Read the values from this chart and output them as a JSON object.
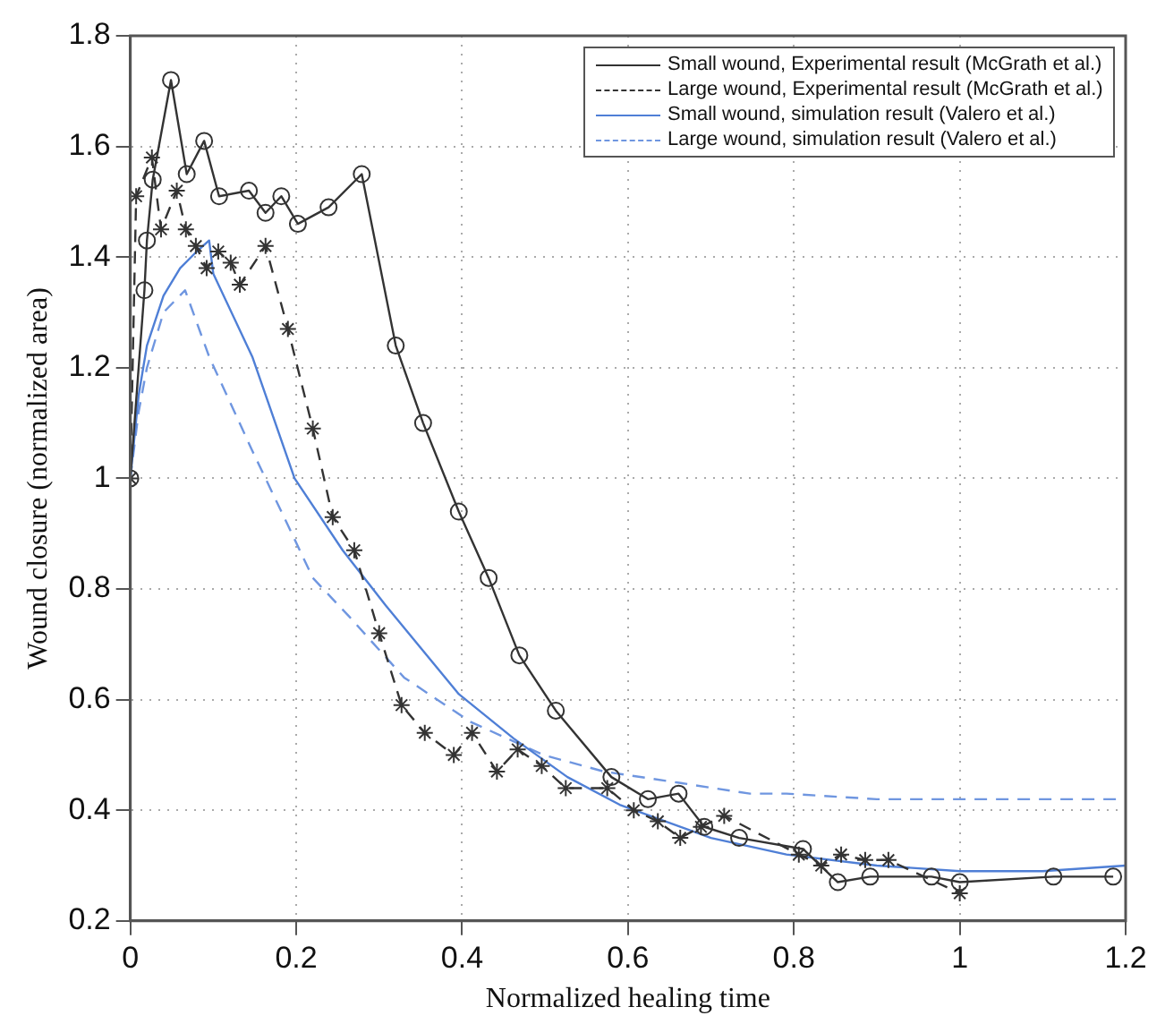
{
  "chart_data": {
    "type": "line",
    "xlabel": "Normalized healing time",
    "ylabel": "Wound closure (normalized area)",
    "xlim": [
      0,
      1.2
    ],
    "xticks": [
      0,
      0.2,
      0.4,
      0.6,
      0.8,
      1,
      1.2
    ],
    "ylim": [
      0.2,
      1.8
    ],
    "yticks": [
      0.2,
      0.4,
      0.6,
      0.8,
      1,
      1.2,
      1.4,
      1.6,
      1.8
    ],
    "grid": true,
    "legend": "top right",
    "series": [
      {
        "name": "Small wound, Experimental result (McGrath et al.)",
        "color": "#333333",
        "marker": "circle",
        "line_style": "solid",
        "x": [
          0,
          0.017,
          0.02,
          0.027,
          0.049,
          0.068,
          0.089,
          0.107,
          0.143,
          0.163,
          0.182,
          0.202,
          0.239,
          0.279,
          0.32,
          0.353,
          0.396,
          0.432,
          0.469,
          0.513,
          0.58,
          0.624,
          0.661,
          0.692,
          0.734,
          0.811,
          0.853,
          0.892,
          0.966,
          1.0,
          1.113,
          1.185
        ],
        "values": [
          1.0,
          1.34,
          1.43,
          1.54,
          1.72,
          1.55,
          1.61,
          1.51,
          1.52,
          1.48,
          1.51,
          1.46,
          1.49,
          1.55,
          1.24,
          1.1,
          0.94,
          0.82,
          0.68,
          0.58,
          0.46,
          0.42,
          0.43,
          0.37,
          0.35,
          0.33,
          0.27,
          0.28,
          0.28,
          0.27,
          0.28,
          0.28
        ]
      },
      {
        "name": "Large wound, Experimental result (McGrath et al.)",
        "color": "#333333",
        "marker": "cross",
        "line_style": "dashed",
        "x": [
          0,
          0.007,
          0.026,
          0.037,
          0.056,
          0.067,
          0.079,
          0.092,
          0.106,
          0.121,
          0.132,
          0.163,
          0.19,
          0.22,
          0.244,
          0.27,
          0.3,
          0.327,
          0.355,
          0.39,
          0.412,
          0.442,
          0.467,
          0.496,
          0.525,
          0.575,
          0.607,
          0.636,
          0.663,
          0.688,
          0.716,
          0.806,
          0.833,
          0.857,
          0.886,
          0.914,
          1.0
        ],
        "values": [
          1.0,
          1.51,
          1.58,
          1.45,
          1.52,
          1.45,
          1.42,
          1.38,
          1.41,
          1.39,
          1.35,
          1.42,
          1.27,
          1.09,
          0.93,
          0.87,
          0.72,
          0.59,
          0.54,
          0.5,
          0.54,
          0.47,
          0.51,
          0.48,
          0.44,
          0.44,
          0.4,
          0.38,
          0.35,
          0.37,
          0.39,
          0.32,
          0.3,
          0.32,
          0.31,
          0.31,
          0.25
        ]
      },
      {
        "name": "Small wound, simulation result (Valero et al.)",
        "color": "#4f7fd6",
        "marker": "none",
        "line_style": "solid",
        "x": [
          0,
          0.01,
          0.02,
          0.04,
          0.06,
          0.08,
          0.095,
          0.1,
          0.147,
          0.198,
          0.256,
          0.308,
          0.396,
          0.462,
          0.527,
          0.59,
          0.7,
          0.791,
          0.9,
          1.0,
          1.1,
          1.2
        ],
        "values": [
          1.0,
          1.15,
          1.24,
          1.33,
          1.38,
          1.41,
          1.43,
          1.37,
          1.22,
          1.0,
          0.87,
          0.77,
          0.61,
          0.53,
          0.46,
          0.41,
          0.35,
          0.32,
          0.3,
          0.29,
          0.29,
          0.3
        ]
      },
      {
        "name": "Large wound, simulation result (Valero et al.)",
        "color": "#6f96e0",
        "marker": "none",
        "line_style": "dashed",
        "x": [
          0,
          0.01,
          0.02,
          0.04,
          0.066,
          0.095,
          0.147,
          0.198,
          0.22,
          0.264,
          0.3,
          0.33,
          0.41,
          0.498,
          0.571,
          0.66,
          0.747,
          0.791,
          0.9,
          0.989,
          1.1,
          1.193
        ],
        "values": [
          1.0,
          1.12,
          1.2,
          1.3,
          1.34,
          1.22,
          1.05,
          0.89,
          0.82,
          0.75,
          0.69,
          0.64,
          0.56,
          0.5,
          0.47,
          0.45,
          0.43,
          0.43,
          0.42,
          0.42,
          0.42,
          0.42
        ]
      }
    ]
  }
}
